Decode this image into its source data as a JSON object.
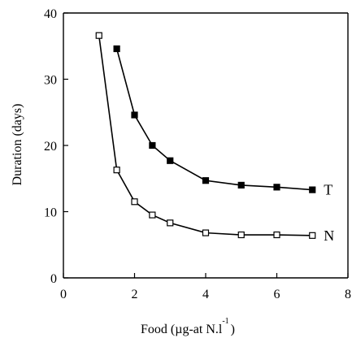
{
  "chart_data": {
    "type": "line",
    "xlabel": "Food (µg-at N.l",
    "xlabel_superscript": "-1",
    "xlabel_suffix": ")",
    "ylabel": "Duration (days)",
    "xlim": [
      0,
      8
    ],
    "ylim": [
      0,
      40
    ],
    "x_ticks": [
      0,
      2,
      4,
      6,
      8
    ],
    "y_ticks": [
      0,
      10,
      20,
      30,
      40
    ],
    "grid": false,
    "series": [
      {
        "name": "T",
        "marker": "filled-square",
        "x": [
          1.5,
          2,
          2.5,
          3,
          4,
          5,
          6,
          7
        ],
        "y": [
          34.6,
          24.6,
          20.0,
          17.7,
          14.7,
          14.0,
          13.7,
          13.3
        ]
      },
      {
        "name": "N",
        "marker": "open-square",
        "x": [
          1,
          1.5,
          2,
          2.5,
          3,
          4,
          5,
          6,
          7
        ],
        "y": [
          36.6,
          16.3,
          11.5,
          9.5,
          8.3,
          6.8,
          6.5,
          6.5,
          6.4
        ]
      }
    ]
  }
}
